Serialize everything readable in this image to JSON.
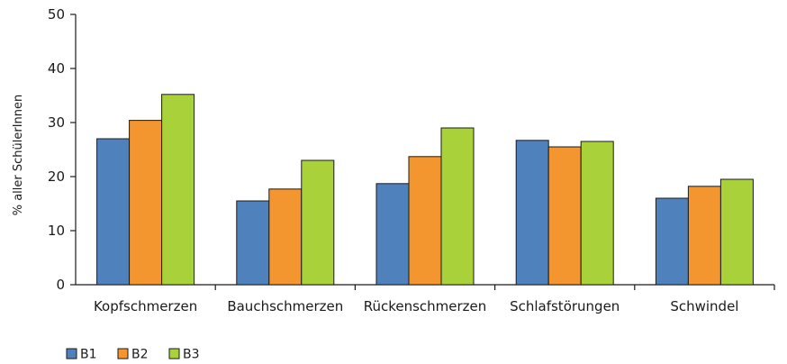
{
  "chart_data": {
    "type": "bar",
    "title": "",
    "xlabel": "",
    "ylabel": "% aller SchülerInnen",
    "ylim": [
      0,
      50
    ],
    "yticks": [
      0,
      10,
      20,
      30,
      40,
      50
    ],
    "grid": false,
    "legend_position": "bottom-left",
    "categories": [
      "Kopfschmerzen",
      "Bauchschmerzen",
      "Rückenschmerzen",
      "Schlafstörungen",
      "Schwindel"
    ],
    "series": [
      {
        "name": "B1",
        "color": "#4f81bd",
        "values": [
          27,
          15.5,
          18.7,
          26.7,
          16
        ]
      },
      {
        "name": "B2",
        "color": "#f3962f",
        "values": [
          30.4,
          17.7,
          23.7,
          25.5,
          18.2
        ]
      },
      {
        "name": "B3",
        "color": "#a9d13a",
        "values": [
          35.2,
          23,
          29,
          26.5,
          19.5
        ]
      }
    ]
  }
}
